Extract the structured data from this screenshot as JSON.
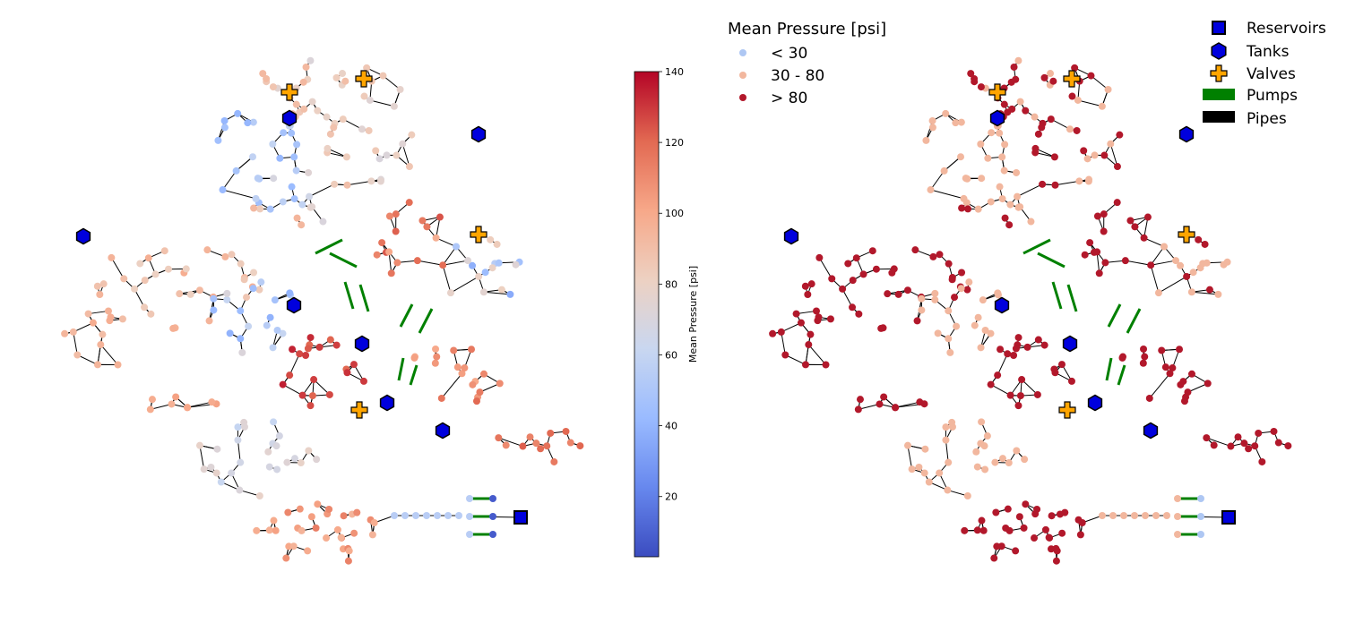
{
  "colorbar": {
    "label": "Mean Pressure [psi]",
    "ticks": [
      "20",
      "40",
      "60",
      "80",
      "100",
      "120",
      "140"
    ],
    "min": 3,
    "max": 140,
    "colors": [
      "#3b4cc0",
      "#6788ee",
      "#9abbff",
      "#c9d7f0",
      "#edd1c2",
      "#f7a889",
      "#e26952",
      "#b40426"
    ]
  },
  "pressure_legend": {
    "title": "Mean Pressure [psi]",
    "items": [
      {
        "label": "< 30",
        "color": "#aec7f3"
      },
      {
        "label": "30 - 80",
        "color": "#f2b79e"
      },
      {
        "label": "> 80",
        "color": "#b2182b"
      }
    ]
  },
  "element_legend": {
    "items": [
      {
        "label": "Reservoirs",
        "icon": "square-icon"
      },
      {
        "label": "Tanks",
        "icon": "hexagon-icon"
      },
      {
        "label": "Valves",
        "icon": "plus-icon"
      },
      {
        "label": "Pumps",
        "icon": "pump-bar-icon"
      },
      {
        "label": "Pipes",
        "icon": "pipe-bar-icon"
      }
    ]
  },
  "colors": {
    "tank": "#0000dd",
    "reservoir": "#0000dd",
    "valve": "#ffa500",
    "pump": "#008000",
    "pipe": "#000000"
  }
}
